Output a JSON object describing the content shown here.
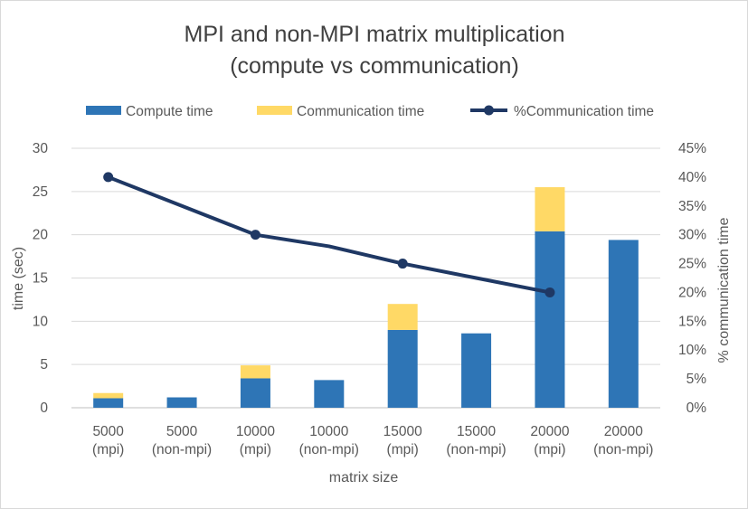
{
  "chart_data": {
    "type": "bar",
    "title_lines": [
      "MPI and non-MPI matrix multiplication",
      "(compute vs communication)"
    ],
    "xlabel": "matrix size",
    "ylabel": "time (sec)",
    "y2label": "% communication time",
    "categories": [
      [
        "5000",
        "(mpi)"
      ],
      [
        "5000",
        "(non-mpi)"
      ],
      [
        "10000",
        "(mpi)"
      ],
      [
        "10000",
        "(non-mpi)"
      ],
      [
        "15000",
        "(mpi)"
      ],
      [
        "15000",
        "(non-mpi)"
      ],
      [
        "20000",
        "(mpi)"
      ],
      [
        "20000",
        "(non-mpi)"
      ]
    ],
    "ylim": [
      0,
      30
    ],
    "yticks": [
      0,
      5,
      10,
      15,
      20,
      25,
      30
    ],
    "y2lim": [
      0,
      45
    ],
    "y2ticks": [
      "0%",
      "5%",
      "10%",
      "15%",
      "20%",
      "25%",
      "30%",
      "35%",
      "40%",
      "45%"
    ],
    "grid": true,
    "legend_position": "top",
    "stacked": true,
    "series": [
      {
        "name": "Compute time",
        "kind": "bar",
        "color": "#2e75b6",
        "values": [
          1.1,
          1.2,
          3.4,
          3.2,
          9.0,
          8.6,
          20.4,
          19.4
        ]
      },
      {
        "name": "Communication time",
        "kind": "bar",
        "color": "#ffd966",
        "values": [
          0.6,
          0,
          1.5,
          0,
          3.0,
          0,
          5.1,
          0
        ]
      },
      {
        "name": "%Communication time",
        "kind": "line",
        "axis": "secondary",
        "color": "#1f3864",
        "marker_indices": [
          0,
          2,
          4,
          6
        ],
        "values": [
          40,
          35,
          30,
          28,
          25,
          22.5,
          20,
          null
        ]
      }
    ]
  }
}
